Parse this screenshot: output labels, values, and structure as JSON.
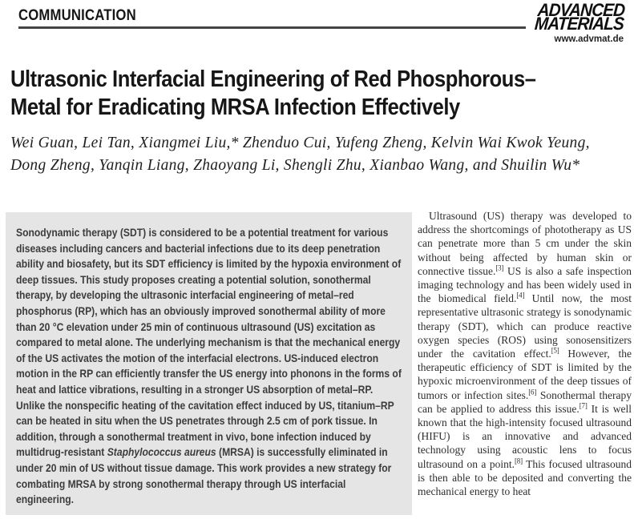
{
  "header": {
    "section_label": "COMMUNICATION",
    "journal_name_line1": "ADVANCED",
    "journal_name_line2": "MATERIALS",
    "website": "www.advmat.de"
  },
  "article": {
    "title_line1": "Ultrasonic Interfacial Engineering of Red Phosphorous–",
    "title_line2": "Metal for Eradicating MRSA Infection Effectively",
    "authors_line1": "Wei Guan, Lei Tan, Xiangmei Liu,* Zhenduo Cui, Yufeng Zheng, Kelvin Wai Kwok Yeung,",
    "authors_line2": "Dong Zheng, Yanqin Liang, Zhaoyang Li, Shengli Zhu, Xianbao Wang, and Shuilin Wu*"
  },
  "abstract": {
    "segments": [
      {
        "t": "Sonodynamic therapy (SDT) is considered to be a potential treatment for various diseases including cancers and bacterial infections due to its deep penetration ability and biosafety, but its SDT efficiency is limited by the hypoxia environment of deep tissues. This study proposes creating a potential solution, sonothermal therapy, by developing the ultrasonic interfacial engineering of metal–red phosphorus (RP), which has an obviously improved sonothermal ability of more than 20 °C elevation under 25 min of continuous ultrasound (US) excitation as compared to metal alone. The underlying mechanism is that the mechanical energy of the US activates the motion of the interfacial electrons. US-induced electron motion in the RP can efficiently transfer the US energy into phonons in the forms of heat and lattice vibrations, resulting in a stronger US absorption of metal–RP. Unlike the nonspecific heating of the cavitation effect induced by US, titanium–RP can be heated in situ when the US penetrates through 2.5 cm of pork tissue. In addition, through a sonothermal treatment in vivo, bone infection induced by multidrug-resistant "
      },
      {
        "i": "Staphylococcus aureus"
      },
      {
        "t": " (MRSA) is successfully eliminated in under 20 min of US without tissue damage. This work provides a new strategy for combating MRSA by strong sonothermal therapy through US interfacial engineering."
      }
    ]
  },
  "body": {
    "paragraph_segments": [
      {
        "t": "Ultrasound (US) therapy was developed to address the shortcomings of phototherapy as US can penetrate more than 5 cm under the skin without being affected by human skin or connective tissue."
      },
      {
        "sup": "[3]"
      },
      {
        "t": " US is also a safe inspection imaging technology and has been widely used in the biomedical field."
      },
      {
        "sup": "[4]"
      },
      {
        "t": " Until now, the most representative ultrasonic strategy is sonodynamic therapy (SDT), which can produce reactive oxygen species (ROS) using sonosensitizers under the cavitation effect."
      },
      {
        "sup": "[5]"
      },
      {
        "t": " However, the therapeutic efficiency of SDT is limited by the hypoxic microenvironment of the deep tissues of tumors or infection sites."
      },
      {
        "sup": "[6]"
      },
      {
        "t": " Sonothermal therapy can be applied to address this issue."
      },
      {
        "sup": "[7]"
      },
      {
        "t": " It is well known that the high-intensity focused ultrasound (HIFU) is an innovative and advanced technology using acoustic lens to focus ultrasound on a point."
      },
      {
        "sup": "[8]"
      },
      {
        "t": " This focused ultrasound is then able to be deposited and converting the mechanical energy to heat"
      }
    ]
  },
  "colors": {
    "abstract_box_bg": "#e5e5e5",
    "header_rule": "#454545",
    "abstract_text": "#3c3c3c",
    "body_text": "#2d2d2d",
    "heading_text": "#161616"
  }
}
